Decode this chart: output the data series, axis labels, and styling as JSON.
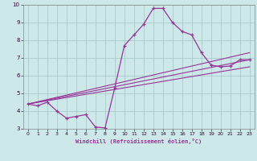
{
  "background_color": "#cce8e8",
  "grid_color": "#aacccc",
  "line_color": "#993399",
  "xlim": [
    -0.5,
    23.5
  ],
  "ylim": [
    3,
    10
  ],
  "xticks": [
    0,
    1,
    2,
    3,
    4,
    5,
    6,
    7,
    8,
    9,
    10,
    11,
    12,
    13,
    14,
    15,
    16,
    17,
    18,
    19,
    20,
    21,
    22,
    23
  ],
  "yticks": [
    3,
    4,
    5,
    6,
    7,
    8,
    9,
    10
  ],
  "xlabel": "Windchill (Refroidissement éolien,°C)",
  "curve1_x": [
    0,
    1,
    2,
    3,
    4,
    5,
    6,
    7,
    8,
    9,
    10,
    11,
    12,
    13,
    14,
    15,
    16,
    17,
    18,
    19,
    20,
    21,
    22,
    23
  ],
  "curve1_y": [
    4.4,
    4.3,
    4.5,
    4.0,
    3.6,
    3.7,
    3.8,
    3.1,
    3.05,
    5.3,
    7.7,
    8.3,
    8.9,
    9.8,
    9.8,
    9.0,
    8.5,
    8.3,
    7.3,
    6.6,
    6.5,
    6.55,
    6.9,
    6.9
  ],
  "line1_x": [
    0,
    23
  ],
  "line1_y": [
    4.4,
    7.3
  ],
  "line2_x": [
    0,
    23
  ],
  "line2_y": [
    4.4,
    6.9
  ],
  "line3_x": [
    0,
    23
  ],
  "line3_y": [
    4.4,
    6.5
  ]
}
